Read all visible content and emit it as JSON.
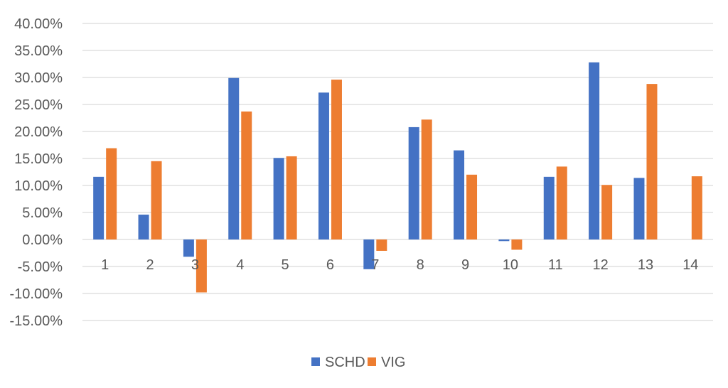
{
  "chart_data": {
    "type": "bar",
    "title": "",
    "xlabel": "",
    "ylabel": "",
    "categories": [
      "1",
      "2",
      "3",
      "4",
      "5",
      "6",
      "7",
      "8",
      "9",
      "10",
      "11",
      "12",
      "13",
      "14"
    ],
    "series": [
      {
        "name": "SCHD",
        "color": "#4472C4",
        "values": [
          11.6,
          4.6,
          -3.2,
          29.9,
          15.1,
          27.2,
          -5.5,
          20.8,
          16.5,
          -0.3,
          11.6,
          32.8,
          11.4,
          null
        ]
      },
      {
        "name": "VIG",
        "color": "#ED7D31",
        "values": [
          16.9,
          14.5,
          -9.8,
          23.7,
          15.4,
          29.6,
          -2.1,
          22.2,
          12.0,
          -1.9,
          13.5,
          10.1,
          28.8,
          11.7
        ]
      }
    ],
    "ylim": [
      -15,
      40
    ],
    "y_ticks": [
      "40.00%",
      "35.00%",
      "30.00%",
      "25.00%",
      "20.00%",
      "15.00%",
      "10.00%",
      "5.00%",
      "0.00%",
      "-5.00%",
      "-10.00%",
      "-15.00%"
    ],
    "y_tick_values": [
      40,
      35,
      30,
      25,
      20,
      15,
      10,
      5,
      0,
      -5,
      -10,
      -15
    ],
    "grid": true,
    "legend_position": "bottom-center"
  }
}
